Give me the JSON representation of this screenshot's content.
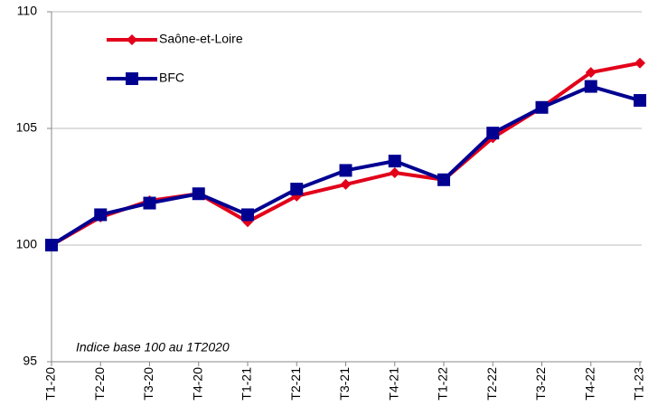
{
  "chart_data": {
    "type": "line",
    "annotation": "Indice base 100 au 1T2020",
    "categories": [
      "T1-20",
      "T2-20",
      "T3-20",
      "T4-20",
      "T1-21",
      "T2-21",
      "T3-21",
      "T4-21",
      "T1-22",
      "T2-22",
      "T3-22",
      "T4-22",
      "T1-23"
    ],
    "series": [
      {
        "name": "Saône-et-Loire",
        "color": "#e2001a",
        "marker": "diamond",
        "values": [
          100,
          101.2,
          101.9,
          102.2,
          101.0,
          102.1,
          102.6,
          103.1,
          102.8,
          104.6,
          105.9,
          107.4,
          107.8
        ]
      },
      {
        "name": "BFC",
        "color": "#000091",
        "marker": "square",
        "values": [
          100,
          101.3,
          101.8,
          102.2,
          101.3,
          102.4,
          103.2,
          103.6,
          102.8,
          104.8,
          105.9,
          106.8,
          106.2
        ]
      }
    ],
    "ylim": [
      95,
      110
    ],
    "yticks": [
      95,
      100,
      105,
      110
    ],
    "grid": true
  }
}
